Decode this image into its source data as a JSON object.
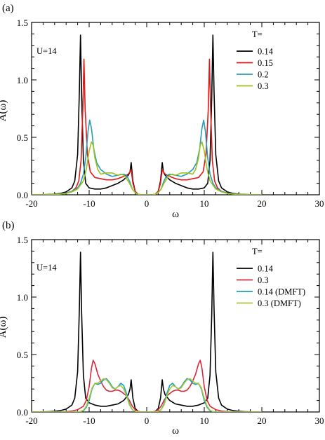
{
  "figure": {
    "panels": [
      "(a)",
      "(b)"
    ]
  },
  "chart_data": [
    {
      "type": "line",
      "panel_label": "(a)",
      "annotation": "U=14",
      "legend_title": "T=",
      "xlabel": "ω",
      "ylabel": "A(ω)",
      "xlim": [
        -20,
        30
      ],
      "ylim": [
        0,
        1.5
      ],
      "xticks": [
        -20,
        -10,
        0,
        10,
        20,
        30
      ],
      "yticks": [
        0.0,
        0.5,
        1.0,
        1.5
      ],
      "ytick_labels": [
        "0.0",
        "0.5",
        "1.0",
        "1.5"
      ],
      "legend_position": "top-right",
      "grid": false,
      "series": [
        {
          "name": "0.14",
          "color": "#000000",
          "x": [
            0,
            0.5,
            1,
            1.5,
            2,
            2.4,
            2.7,
            2.9,
            3.2,
            4,
            5,
            6,
            7,
            8,
            9,
            10,
            10.6,
            11,
            11.3,
            11.5,
            11.7,
            12,
            12.5,
            13,
            14,
            15,
            16,
            17,
            18,
            19,
            20
          ],
          "y": [
            0,
            0,
            0,
            0.005,
            0.03,
            0.12,
            0.28,
            0.2,
            0.17,
            0.13,
            0.1,
            0.08,
            0.06,
            0.05,
            0.05,
            0.06,
            0.1,
            0.3,
            0.85,
            1.39,
            0.9,
            0.35,
            0.12,
            0.06,
            0.025,
            0.012,
            0.006,
            0.003,
            0.001,
            0,
            0
          ]
        },
        {
          "name": "0.15",
          "color": "#e01818",
          "x": [
            0,
            0.5,
            1,
            1.5,
            2,
            2.4,
            2.7,
            2.9,
            3.2,
            4,
            5,
            6,
            7,
            8,
            9,
            9.8,
            10.3,
            10.7,
            10.9,
            11.1,
            11.4,
            11.8,
            12.3,
            13,
            14,
            15,
            16,
            17,
            18,
            19,
            20
          ],
          "y": [
            0,
            0,
            0,
            0.005,
            0.03,
            0.1,
            0.22,
            0.2,
            0.18,
            0.16,
            0.14,
            0.13,
            0.13,
            0.14,
            0.15,
            0.2,
            0.35,
            0.75,
            1.18,
            0.75,
            0.3,
            0.12,
            0.06,
            0.03,
            0.015,
            0.008,
            0.004,
            0.002,
            0.001,
            0,
            0
          ]
        },
        {
          "name": "0.2",
          "color": "#2a9ab8",
          "x": [
            0,
            0.5,
            1,
            1.5,
            2,
            2.5,
            3,
            3.5,
            4,
            5,
            6,
            7,
            8,
            8.7,
            9.2,
            9.6,
            9.9,
            10.2,
            10.6,
            11,
            11.5,
            12,
            13,
            14,
            15,
            16,
            17,
            18,
            19,
            20
          ],
          "y": [
            0,
            0,
            0,
            0.005,
            0.02,
            0.05,
            0.12,
            0.17,
            0.18,
            0.17,
            0.16,
            0.18,
            0.22,
            0.28,
            0.4,
            0.58,
            0.65,
            0.55,
            0.32,
            0.18,
            0.1,
            0.06,
            0.03,
            0.015,
            0.008,
            0.004,
            0.002,
            0.001,
            0,
            0
          ]
        },
        {
          "name": "0.3",
          "color": "#9cc21e",
          "x": [
            0,
            0.5,
            1,
            1.5,
            2,
            2.5,
            3,
            3.5,
            4,
            4.5,
            5,
            6,
            7,
            8,
            8.5,
            9,
            9.3,
            9.6,
            10,
            10.5,
            11,
            12,
            13,
            14,
            15,
            16,
            17,
            18,
            19,
            20
          ],
          "y": [
            0,
            0,
            0,
            0.005,
            0.02,
            0.05,
            0.1,
            0.14,
            0.17,
            0.18,
            0.17,
            0.19,
            0.19,
            0.18,
            0.22,
            0.32,
            0.43,
            0.46,
            0.38,
            0.22,
            0.12,
            0.05,
            0.025,
            0.012,
            0.006,
            0.003,
            0.001,
            0,
            0,
            0
          ]
        }
      ]
    },
    {
      "type": "line",
      "panel_label": "(b)",
      "annotation": "U=14",
      "legend_title": "T=",
      "xlabel": "ω",
      "ylabel": "A(ω)",
      "xlim": [
        -20,
        30
      ],
      "ylim": [
        0,
        1.5
      ],
      "xticks": [
        -20,
        -10,
        0,
        10,
        20,
        30
      ],
      "yticks": [
        0.0,
        0.5,
        1.0,
        1.5
      ],
      "ytick_labels": [
        "0.0",
        "0.5",
        "1.0",
        "1.5"
      ],
      "legend_position": "top-right",
      "grid": false,
      "series": [
        {
          "name": "0.14",
          "color": "#000000",
          "x": [
            0,
            0.5,
            1,
            1.5,
            2,
            2.4,
            2.7,
            2.9,
            3.2,
            4,
            5,
            6,
            7,
            8,
            9,
            10,
            10.6,
            11,
            11.3,
            11.5,
            11.7,
            12,
            12.5,
            13,
            14,
            15,
            16,
            17,
            18,
            19,
            20
          ],
          "y": [
            0,
            0,
            0,
            0.005,
            0.03,
            0.12,
            0.28,
            0.2,
            0.15,
            0.1,
            0.07,
            0.06,
            0.05,
            0.05,
            0.06,
            0.08,
            0.12,
            0.32,
            0.85,
            1.39,
            0.9,
            0.35,
            0.12,
            0.06,
            0.025,
            0.012,
            0.006,
            0.003,
            0.001,
            0,
            0
          ]
        },
        {
          "name": "0.3",
          "color": "#d8283c",
          "x": [
            0,
            0.5,
            1,
            1.5,
            2,
            2.5,
            3,
            3.5,
            4,
            4.5,
            5,
            5.5,
            6,
            6.5,
            7,
            7.5,
            8,
            8.5,
            9,
            9.3,
            9.6,
            10,
            10.5,
            11,
            12,
            13,
            14,
            15,
            16,
            18,
            20
          ],
          "y": [
            0,
            0,
            0,
            0.005,
            0.02,
            0.05,
            0.1,
            0.14,
            0.16,
            0.18,
            0.19,
            0.19,
            0.18,
            0.18,
            0.19,
            0.22,
            0.27,
            0.33,
            0.42,
            0.45,
            0.38,
            0.22,
            0.1,
            0.05,
            0.02,
            0.008,
            0.003,
            0.001,
            0,
            0,
            0
          ]
        },
        {
          "name": "0.14 (DMFT)",
          "color": "#1a9fb8",
          "x": [
            0,
            0.5,
            1,
            1.5,
            2,
            2.5,
            3,
            3.5,
            4,
            4.5,
            5,
            5.5,
            6,
            6.5,
            7,
            7.5,
            8,
            8.5,
            9,
            9.5,
            10,
            10.5,
            11,
            11.5,
            12,
            13,
            14,
            16,
            18,
            20
          ],
          "y": [
            0,
            0,
            0,
            0,
            0.005,
            0.02,
            0.07,
            0.16,
            0.23,
            0.25,
            0.22,
            0.2,
            0.22,
            0.26,
            0.29,
            0.28,
            0.25,
            0.24,
            0.25,
            0.2,
            0.1,
            0.04,
            0.01,
            0.003,
            0,
            0,
            0,
            0,
            0,
            0
          ]
        },
        {
          "name": "0.3 (DMFT)",
          "color": "#a8c83a",
          "x": [
            0,
            0.5,
            1,
            1.5,
            2,
            2.5,
            3,
            3.5,
            4,
            4.5,
            5,
            5.5,
            6,
            6.5,
            7,
            7.5,
            8,
            8.5,
            9,
            9.5,
            10,
            10.5,
            11,
            11.5,
            12,
            13,
            14,
            16,
            18,
            20
          ],
          "y": [
            0,
            0,
            0,
            0,
            0.005,
            0.02,
            0.06,
            0.14,
            0.2,
            0.23,
            0.22,
            0.2,
            0.21,
            0.25,
            0.28,
            0.29,
            0.27,
            0.25,
            0.25,
            0.21,
            0.12,
            0.05,
            0.015,
            0.004,
            0,
            0,
            0,
            0,
            0,
            0
          ]
        }
      ]
    }
  ]
}
